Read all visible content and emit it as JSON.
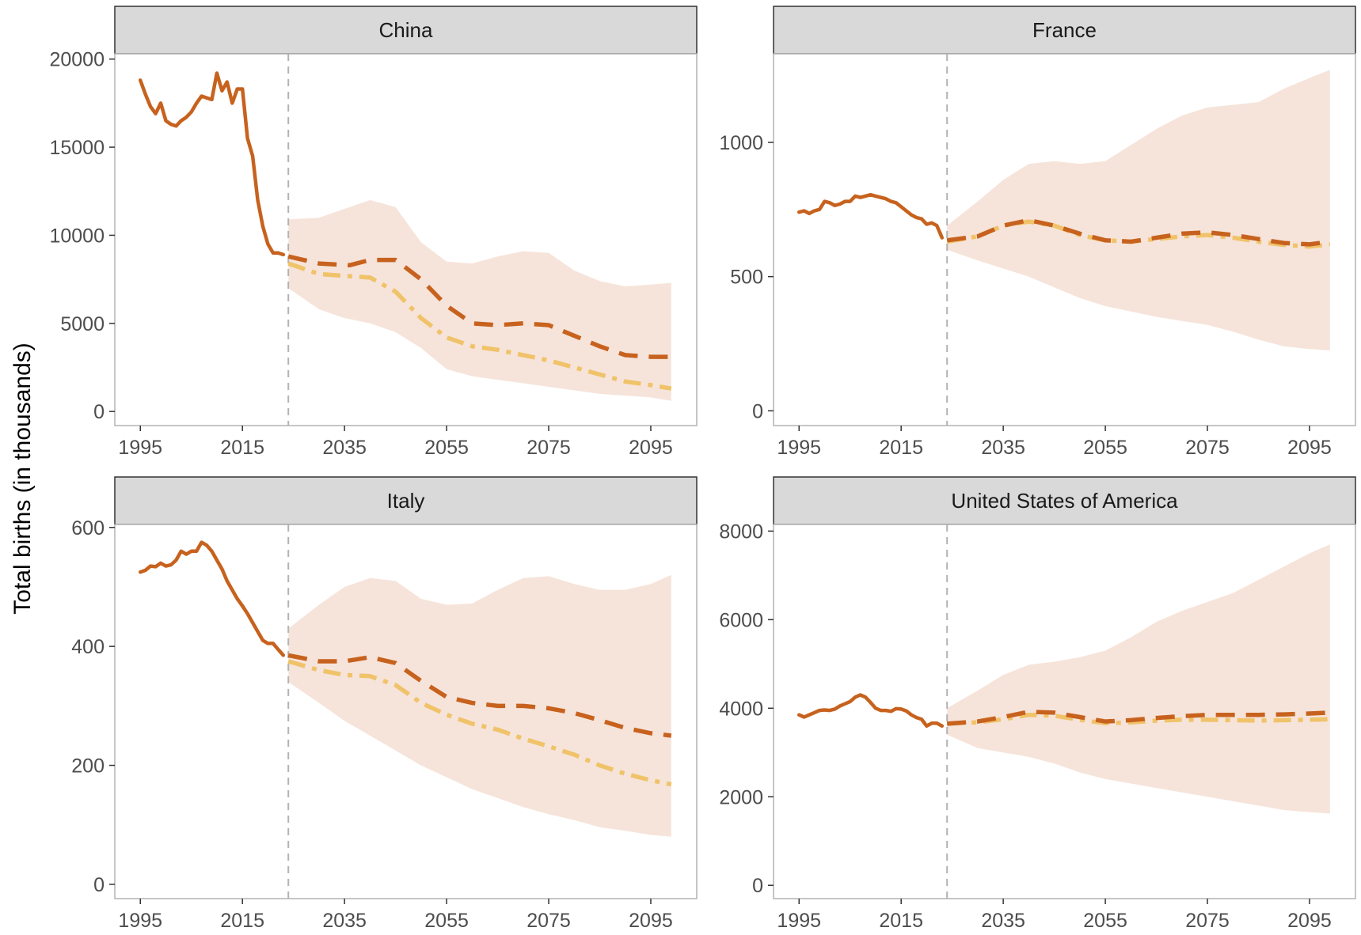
{
  "y_axis_label": "Total births (in thousands)",
  "chart_data": [
    {
      "type": "line",
      "title": "China",
      "xlim": [
        1990,
        2104
      ],
      "ylim": [
        -800,
        20300
      ],
      "x_ticks": [
        1995,
        2015,
        2035,
        2055,
        2075,
        2095
      ],
      "y_ticks": [
        0,
        5000,
        10000,
        15000,
        20000
      ],
      "projection_start": 2024,
      "observed": {
        "x": [
          1995,
          1996,
          1997,
          1998,
          1999,
          2000,
          2001,
          2002,
          2003,
          2004,
          2005,
          2006,
          2007,
          2008,
          2009,
          2010,
          2011,
          2012,
          2013,
          2014,
          2015,
          2016,
          2017,
          2018,
          2019,
          2020,
          2021,
          2022,
          2023
        ],
        "y": [
          18800,
          18000,
          17300,
          16900,
          17500,
          16500,
          16300,
          16200,
          16500,
          16700,
          17000,
          17500,
          17900,
          17800,
          17700,
          19200,
          18200,
          18700,
          17500,
          18300,
          18300,
          15500,
          14500,
          12000,
          10500,
          9500,
          9000,
          9000,
          8900
        ]
      },
      "projection_median": {
        "x": [
          2024,
          2030,
          2036,
          2040,
          2045,
          2050,
          2055,
          2060,
          2065,
          2070,
          2075,
          2080,
          2085,
          2090,
          2095,
          2099
        ],
        "y": [
          8800,
          8400,
          8300,
          8600,
          8600,
          7500,
          6000,
          5000,
          4900,
          5000,
          4900,
          4300,
          3700,
          3200,
          3100,
          3100
        ]
      },
      "projection_alt": {
        "x": [
          2024,
          2030,
          2035,
          2040,
          2045,
          2050,
          2055,
          2060,
          2065,
          2070,
          2075,
          2080,
          2085,
          2090,
          2095,
          2099
        ],
        "y": [
          8400,
          7800,
          7700,
          7600,
          6800,
          5300,
          4200,
          3700,
          3500,
          3200,
          2900,
          2500,
          2100,
          1700,
          1500,
          1300
        ]
      },
      "interval": {
        "x": [
          2024,
          2030,
          2035,
          2040,
          2045,
          2050,
          2055,
          2060,
          2065,
          2070,
          2075,
          2080,
          2085,
          2090,
          2095,
          2099
        ],
        "lower": [
          7000,
          5800,
          5300,
          5000,
          4500,
          3600,
          2400,
          2000,
          1800,
          1600,
          1400,
          1200,
          1000,
          900,
          800,
          600
        ],
        "upper": [
          10900,
          11000,
          11500,
          12000,
          11600,
          9600,
          8500,
          8400,
          8800,
          9100,
          9000,
          8000,
          7400,
          7100,
          7200,
          7300
        ]
      }
    },
    {
      "type": "line",
      "title": "France",
      "xlim": [
        1990,
        2104
      ],
      "ylim": [
        -55,
        1330
      ],
      "x_ticks": [
        1995,
        2015,
        2035,
        2055,
        2075,
        2095
      ],
      "y_ticks": [
        0,
        500,
        1000
      ],
      "projection_start": 2024,
      "observed": {
        "x": [
          1995,
          1996,
          1997,
          1998,
          1999,
          2000,
          2001,
          2002,
          2003,
          2004,
          2005,
          2006,
          2007,
          2008,
          2009,
          2010,
          2011,
          2012,
          2013,
          2014,
          2015,
          2016,
          2017,
          2018,
          2019,
          2020,
          2021,
          2022,
          2023
        ],
        "y": [
          740,
          745,
          735,
          745,
          750,
          780,
          775,
          765,
          770,
          780,
          780,
          800,
          795,
          800,
          805,
          800,
          795,
          790,
          780,
          775,
          760,
          745,
          730,
          720,
          715,
          695,
          700,
          690,
          645
        ]
      },
      "projection_median": {
        "x": [
          2024,
          2030,
          2035,
          2040,
          2045,
          2050,
          2055,
          2060,
          2065,
          2070,
          2075,
          2080,
          2085,
          2090,
          2095,
          2099
        ],
        "y": [
          635,
          650,
          690,
          710,
          690,
          660,
          635,
          630,
          645,
          660,
          665,
          655,
          640,
          625,
          620,
          630
        ]
      },
      "projection_alt": {
        "x": [
          2024,
          2030,
          2035,
          2040,
          2045,
          2050,
          2055,
          2060,
          2065,
          2070,
          2075,
          2080,
          2085,
          2090,
          2095,
          2099
        ],
        "y": [
          630,
          650,
          690,
          705,
          690,
          655,
          635,
          630,
          640,
          650,
          655,
          645,
          630,
          618,
          612,
          620
        ]
      },
      "interval": {
        "x": [
          2024,
          2030,
          2035,
          2040,
          2045,
          2050,
          2055,
          2060,
          2065,
          2070,
          2075,
          2080,
          2085,
          2090,
          2095,
          2099
        ],
        "lower": [
          600,
          560,
          530,
          500,
          460,
          420,
          390,
          370,
          350,
          335,
          320,
          295,
          265,
          240,
          230,
          225
        ],
        "upper": [
          690,
          780,
          860,
          920,
          930,
          920,
          930,
          990,
          1050,
          1100,
          1130,
          1140,
          1150,
          1200,
          1240,
          1270
        ]
      }
    },
    {
      "type": "line",
      "title": "Italy",
      "xlim": [
        1990,
        2104
      ],
      "ylim": [
        -24,
        605
      ],
      "x_ticks": [
        1995,
        2015,
        2035,
        2055,
        2075,
        2095
      ],
      "y_ticks": [
        0,
        200,
        400,
        600
      ],
      "projection_start": 2024,
      "observed": {
        "x": [
          1995,
          1996,
          1997,
          1998,
          1999,
          2000,
          2001,
          2002,
          2003,
          2004,
          2005,
          2006,
          2007,
          2008,
          2009,
          2010,
          2011,
          2012,
          2013,
          2014,
          2015,
          2016,
          2017,
          2018,
          2019,
          2020,
          2021,
          2022,
          2023
        ],
        "y": [
          525,
          528,
          535,
          534,
          540,
          535,
          537,
          545,
          560,
          555,
          560,
          560,
          575,
          570,
          560,
          545,
          530,
          510,
          495,
          480,
          468,
          455,
          440,
          425,
          410,
          405,
          405,
          395,
          385
        ]
      },
      "projection_median": {
        "x": [
          2024,
          2030,
          2035,
          2040,
          2045,
          2050,
          2055,
          2060,
          2065,
          2070,
          2075,
          2080,
          2085,
          2090,
          2095,
          2099
        ],
        "y": [
          385,
          375,
          375,
          382,
          372,
          342,
          315,
          305,
          300,
          300,
          296,
          288,
          276,
          263,
          254,
          250
        ]
      },
      "projection_alt": {
        "x": [
          2024,
          2030,
          2035,
          2040,
          2045,
          2050,
          2055,
          2060,
          2065,
          2070,
          2075,
          2080,
          2085,
          2090,
          2095,
          2099
        ],
        "y": [
          375,
          360,
          352,
          350,
          335,
          305,
          285,
          270,
          260,
          245,
          232,
          218,
          200,
          186,
          175,
          168
        ]
      },
      "interval": {
        "x": [
          2024,
          2030,
          2035,
          2040,
          2045,
          2050,
          2055,
          2060,
          2065,
          2070,
          2075,
          2080,
          2085,
          2090,
          2095,
          2099
        ],
        "lower": [
          340,
          305,
          275,
          250,
          225,
          200,
          180,
          160,
          145,
          130,
          118,
          108,
          96,
          90,
          83,
          80
        ],
        "upper": [
          430,
          470,
          500,
          515,
          510,
          480,
          470,
          472,
          495,
          515,
          518,
          505,
          495,
          495,
          505,
          520
        ]
      }
    },
    {
      "type": "line",
      "title": "United States of America",
      "xlim": [
        1990,
        2104
      ],
      "ylim": [
        -300,
        8150
      ],
      "x_ticks": [
        1995,
        2015,
        2035,
        2055,
        2075,
        2095
      ],
      "y_ticks": [
        0,
        2000,
        4000,
        6000,
        8000
      ],
      "projection_start": 2024,
      "observed": {
        "x": [
          1995,
          1996,
          1997,
          1998,
          1999,
          2000,
          2001,
          2002,
          2003,
          2004,
          2005,
          2006,
          2007,
          2008,
          2009,
          2010,
          2011,
          2012,
          2013,
          2014,
          2015,
          2016,
          2017,
          2018,
          2019,
          2020,
          2021,
          2022,
          2023
        ],
        "y": [
          3850,
          3800,
          3850,
          3900,
          3950,
          3960,
          3950,
          3980,
          4050,
          4100,
          4150,
          4250,
          4300,
          4250,
          4130,
          4000,
          3950,
          3950,
          3930,
          3990,
          3980,
          3940,
          3850,
          3790,
          3750,
          3600,
          3660,
          3660,
          3600
        ]
      },
      "projection_median": {
        "x": [
          2024,
          2030,
          2035,
          2040,
          2045,
          2050,
          2055,
          2060,
          2065,
          2070,
          2075,
          2080,
          2085,
          2090,
          2095,
          2099
        ],
        "y": [
          3650,
          3700,
          3800,
          3920,
          3900,
          3800,
          3700,
          3730,
          3780,
          3820,
          3850,
          3850,
          3850,
          3860,
          3880,
          3900
        ]
      },
      "projection_alt": {
        "x": [
          2024,
          2030,
          2035,
          2040,
          2045,
          2050,
          2055,
          2060,
          2065,
          2070,
          2075,
          2080,
          2085,
          2090,
          2095,
          2099
        ],
        "y": [
          3650,
          3680,
          3750,
          3850,
          3830,
          3740,
          3660,
          3680,
          3720,
          3740,
          3740,
          3730,
          3720,
          3730,
          3740,
          3750
        ]
      },
      "interval": {
        "x": [
          2024,
          2030,
          2035,
          2040,
          2045,
          2050,
          2055,
          2060,
          2065,
          2070,
          2075,
          2080,
          2085,
          2090,
          2095,
          2099
        ],
        "lower": [
          3400,
          3100,
          3000,
          2900,
          2750,
          2550,
          2400,
          2300,
          2200,
          2100,
          2000,
          1900,
          1800,
          1700,
          1650,
          1620
        ],
        "upper": [
          4000,
          4400,
          4750,
          4980,
          5050,
          5150,
          5300,
          5600,
          5950,
          6200,
          6400,
          6600,
          6900,
          7200,
          7500,
          7700
        ]
      }
    }
  ],
  "colors": {
    "observed": "#c7621e",
    "projection_median": "#c7621e",
    "projection_alt": "#f0c36a",
    "interval_fill": "#f6e4da",
    "vline": "#b3b3b3",
    "strip_fill": "#d9d9d9",
    "panel_border": "#b3b3b3",
    "axis_text": "#4d4d4d"
  }
}
